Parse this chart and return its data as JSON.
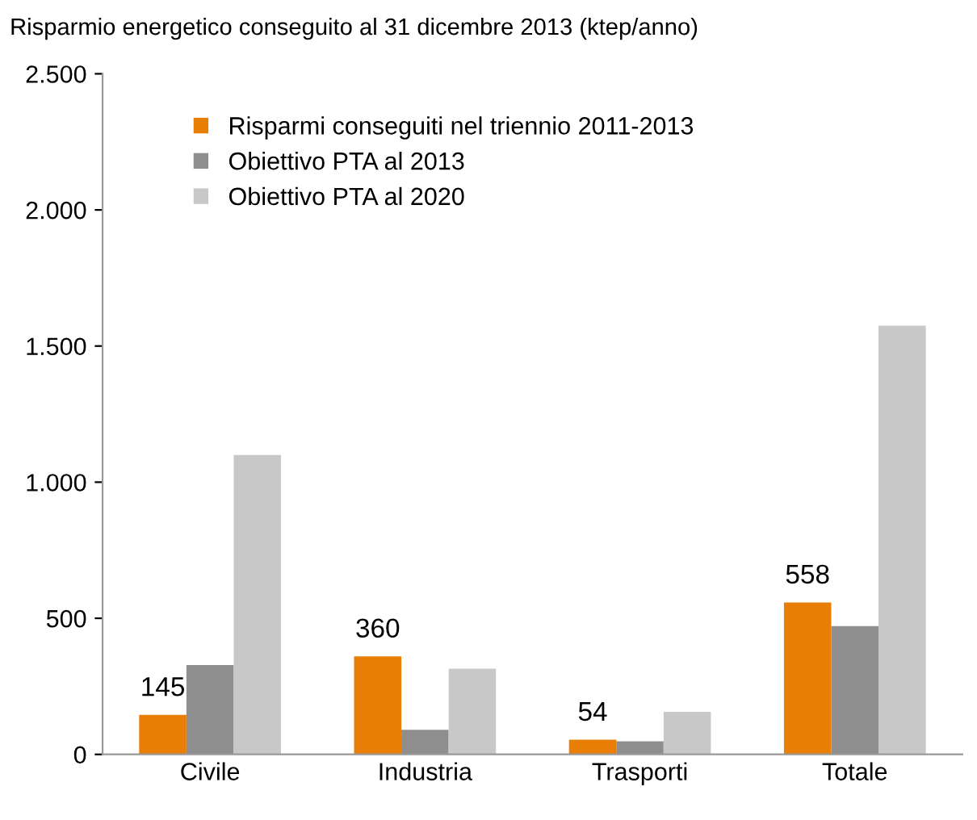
{
  "chart_data": {
    "type": "bar",
    "title": "Risparmio energetico conseguito al 31 dicembre 2013 (ktep/anno)",
    "categories": [
      "Civile",
      "Industria",
      "Trasporti",
      "Totale"
    ],
    "series": [
      {
        "name": "Risparmi conseguiti nel triennio 2011-2013",
        "color": "#e97e07",
        "values": [
          145,
          360,
          54,
          558
        ],
        "value_labels": [
          "145",
          "360",
          "54",
          "558"
        ]
      },
      {
        "name": "Obiettivo PTA al 2013",
        "color": "#8e8e8e",
        "values": [
          328,
          90,
          48,
          471
        ]
      },
      {
        "name": "Obiettivo PTA al 2020",
        "color": "#c8c8c8",
        "values": [
          1100,
          315,
          156,
          1575
        ]
      }
    ],
    "ylim": [
      0,
      2500
    ],
    "yticks": [
      0,
      500,
      {
        "value": 1000,
        "label": "1.000"
      },
      {
        "value": 1500,
        "label": "1.500"
      },
      {
        "value": 2000,
        "label": "2.000"
      },
      {
        "value": 2500,
        "label": "2.500"
      }
    ],
    "legend": "top left",
    "grid": false
  }
}
